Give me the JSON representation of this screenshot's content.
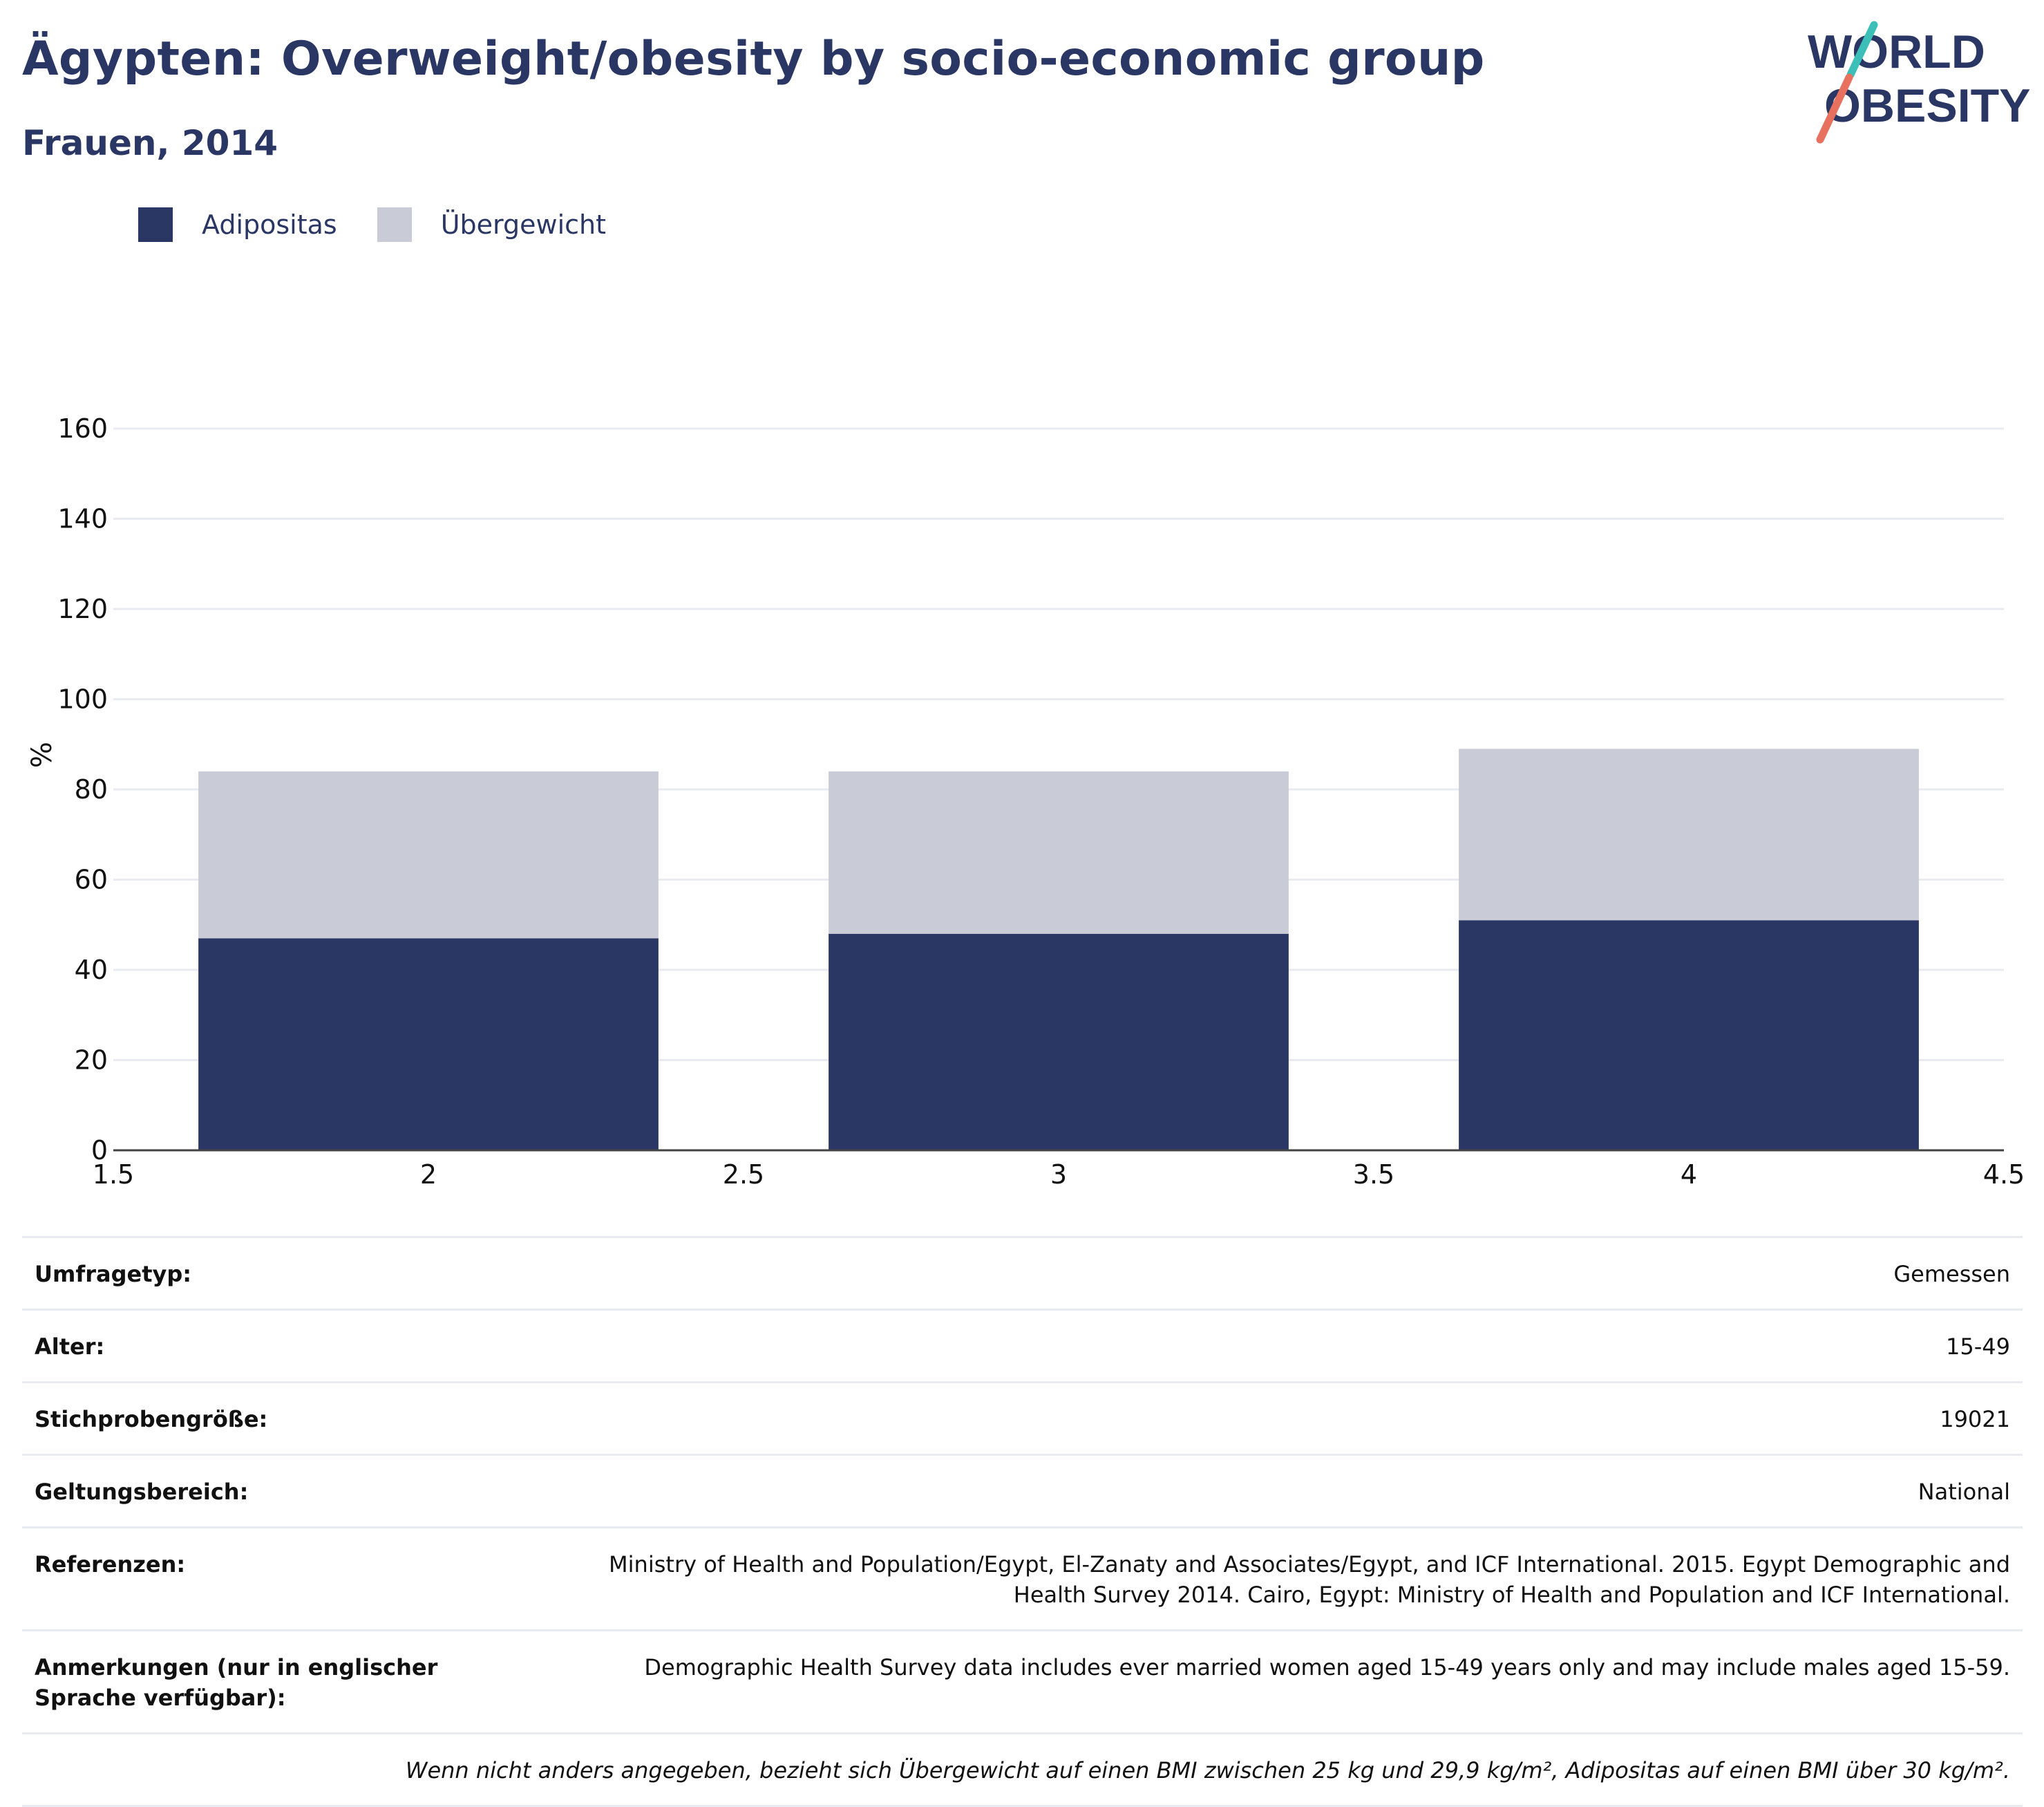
{
  "header": {
    "title": "Ägypten: Overweight/obesity by socio-economic group",
    "subtitle": "Frauen, 2014",
    "logo_line1": "WORLD",
    "logo_line2": "OBESITY"
  },
  "colors": {
    "adipositas": "#2a3663",
    "uebergewicht": "#c9cbd6",
    "logo_teal": "#3bbfb8",
    "logo_coral": "#e7705f"
  },
  "legend": [
    {
      "label": "Adipositas"
    },
    {
      "label": "Übergewicht"
    }
  ],
  "chart_data": {
    "type": "bar",
    "stacked": true,
    "x": [
      2,
      3,
      4
    ],
    "bar_width": 0.73,
    "series": [
      {
        "name": "Adipositas",
        "values": [
          47,
          48,
          51
        ]
      },
      {
        "name": "Übergewicht",
        "values": [
          37,
          36,
          38
        ]
      }
    ],
    "ylabel": "%",
    "xlim": [
      1.5,
      4.5
    ],
    "ylim": [
      0,
      160
    ],
    "xticks": [
      "1.5",
      "2",
      "2.5",
      "3",
      "3.5",
      "4",
      "4.5"
    ],
    "yticks": [
      "0",
      "20",
      "40",
      "60",
      "80",
      "100",
      "120",
      "140",
      "160"
    ],
    "grid": true,
    "legend_position": "top-left"
  },
  "meta": {
    "rows": [
      {
        "label": "Umfragetyp:",
        "value": "Gemessen"
      },
      {
        "label": "Alter:",
        "value": "15-49"
      },
      {
        "label": "Stichprobengröße:",
        "value": "19021"
      },
      {
        "label": "Geltungsbereich:",
        "value": "National"
      },
      {
        "label": "Referenzen:",
        "value": "Ministry of Health and Population/Egypt, El-Zanaty and Associates/Egypt, and ICF International. 2015. Egypt Demographic and Health Survey 2014. Cairo, Egypt: Ministry of Health and Population and ICF International."
      },
      {
        "label": "Anmerkungen (nur in englischer Sprache verfügbar):",
        "value": "Demographic Health Survey data includes ever married women aged 15-49 years only and may include males aged 15-59."
      }
    ],
    "note": "Wenn nicht anders angegeben, bezieht sich Übergewicht auf einen BMI zwischen 25 kg und 29,9 kg/m², Adipositas auf einen BMI über 30 kg/m²."
  }
}
